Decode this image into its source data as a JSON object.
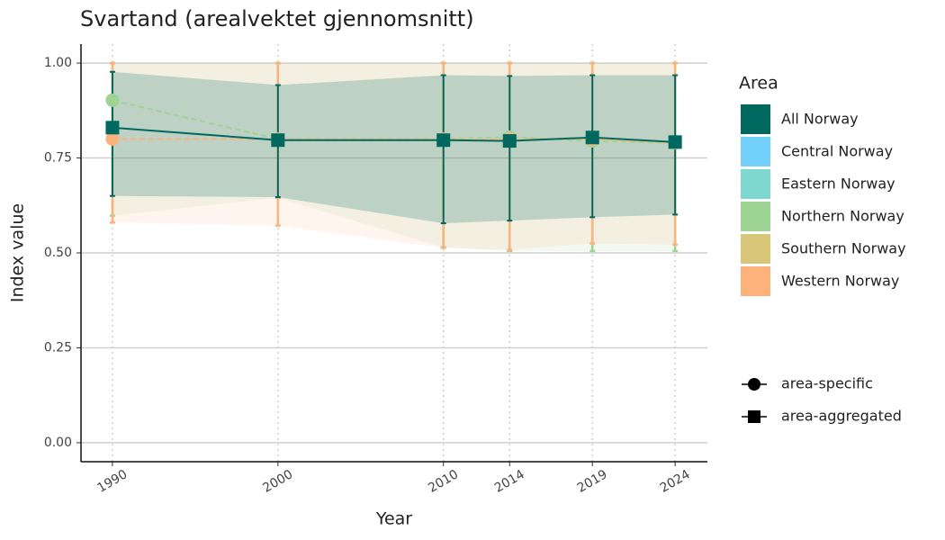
{
  "chart_data": {
    "type": "errorline",
    "title": "Svartand (arealvektet gjennomsnitt)",
    "x_label": "Year",
    "y_label": "Index value",
    "x": [
      1990,
      2000,
      2010,
      2014,
      2019,
      2024
    ],
    "xlim": [
      1988.1,
      2025.95
    ],
    "xticks": [
      1990,
      2000,
      2010,
      2014,
      2019,
      2024
    ],
    "ylim": [
      -0.05,
      1.05
    ],
    "yticks": [
      {
        "value": 0,
        "label": "0.00"
      },
      {
        "value": 0.25,
        "label": "0.25"
      },
      {
        "value": 0.5,
        "label": "0.50"
      },
      {
        "value": 0.75,
        "label": "0.75"
      },
      {
        "value": 1,
        "label": "1.00"
      }
    ],
    "grid": true,
    "legend_title": "Area",
    "series": [
      {
        "name": "All Norway",
        "color": "#00695f",
        "shape": "square",
        "dashed": false,
        "values": [
          0.83,
          0.797,
          0.797,
          0.795,
          0.804,
          0.792
        ],
        "lower": [
          0.65,
          0.647,
          0.578,
          0.585,
          0.594,
          0.601
        ],
        "upper": [
          0.977,
          0.942,
          0.968,
          0.966,
          0.968,
          0.968
        ]
      },
      {
        "name": "Central Norway",
        "color": "#72d0fb",
        "shape": "circle",
        "dashed": true,
        "values": [
          null,
          null,
          null,
          null,
          null,
          null
        ],
        "lower": [
          null,
          null,
          null,
          null,
          null,
          null
        ],
        "upper": [
          null,
          null,
          null,
          null,
          null,
          null
        ]
      },
      {
        "name": "Eastern Norway",
        "color": "#7ed8cf",
        "shape": "circle",
        "dashed": true,
        "values": [
          null,
          null,
          null,
          null,
          null,
          null
        ],
        "lower": [
          null,
          null,
          null,
          null,
          null,
          null
        ],
        "upper": [
          null,
          null,
          null,
          null,
          null,
          null
        ]
      },
      {
        "name": "Northern Norway",
        "color": "#9dd493",
        "shape": "circle",
        "dashed": true,
        "values": [
          0.902,
          0.8,
          0.8,
          0.805,
          0.795,
          0.79
        ],
        "lower": [
          0.598,
          0.645,
          0.515,
          0.505,
          0.505,
          0.505
        ],
        "upper": [
          1,
          1,
          1,
          1,
          1,
          1
        ]
      },
      {
        "name": "Southern Norway",
        "color": "#d8c779",
        "shape": "circle",
        "dashed": true,
        "values": [
          null,
          null,
          null,
          null,
          null,
          null
        ],
        "lower": [
          null,
          null,
          null,
          null,
          null,
          null
        ],
        "upper": [
          null,
          null,
          null,
          null,
          null,
          null
        ]
      },
      {
        "name": "Western Norway",
        "color": "#fdb27b",
        "shape": "circle",
        "dashed": true,
        "values": [
          0.8,
          0.8,
          0.8,
          0.8,
          0.8,
          0.79
        ],
        "lower": [
          0.58,
          0.572,
          0.513,
          0.508,
          0.525,
          0.522
        ],
        "upper": [
          1,
          1,
          1,
          1,
          1,
          1
        ]
      }
    ],
    "shape_legend": [
      {
        "shape": "circle",
        "label": "area-specific"
      },
      {
        "shape": "square",
        "label": "area-aggregated"
      }
    ]
  }
}
